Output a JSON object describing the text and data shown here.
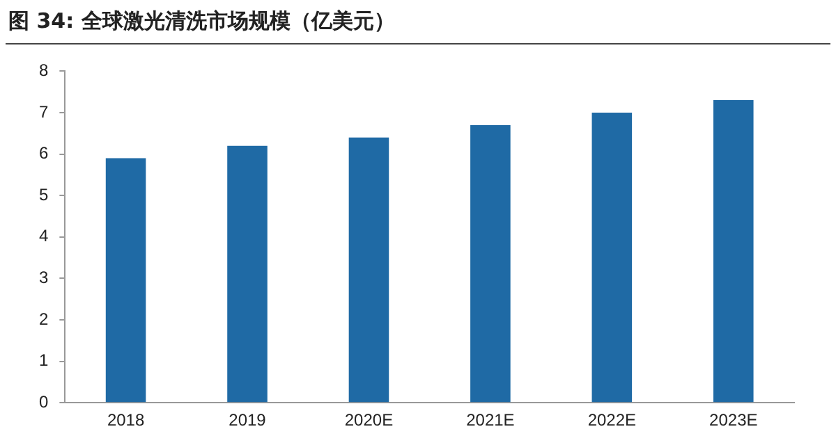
{
  "chart_data": {
    "type": "bar",
    "title": "图 34:  全球激光清洗市场规模（亿美元）",
    "categories": [
      "2018",
      "2019",
      "2020E",
      "2021E",
      "2022E",
      "2023E"
    ],
    "values": [
      5.9,
      6.2,
      6.4,
      6.7,
      7.0,
      7.3
    ],
    "color": "#1f6aa5",
    "ylim": [
      0,
      8
    ],
    "yticks": [
      0,
      1,
      2,
      3,
      4,
      5,
      6,
      7,
      8
    ],
    "grid": false,
    "legend": false
  }
}
